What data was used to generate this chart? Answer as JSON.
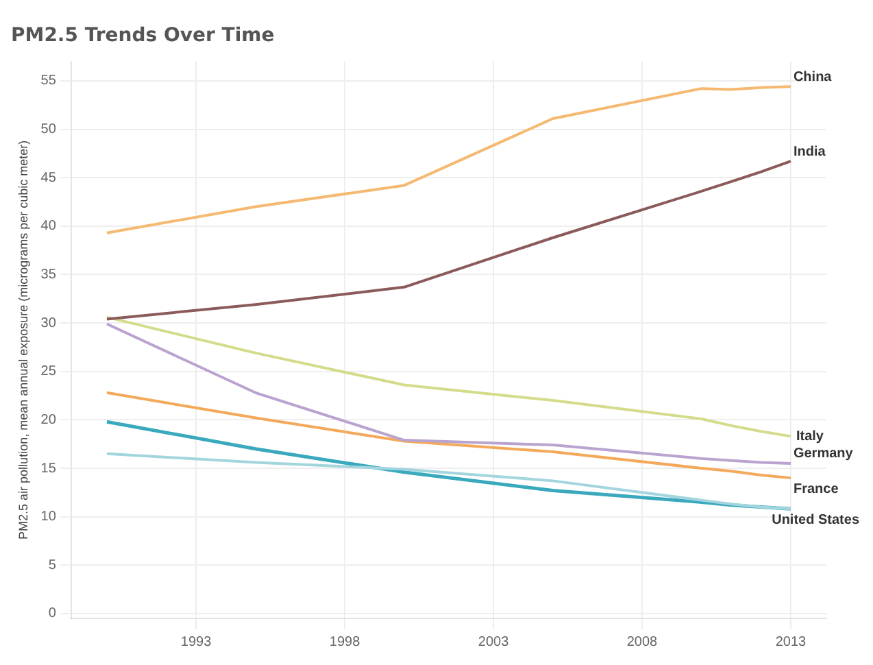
{
  "chart_data": {
    "type": "line",
    "title": "PM2.5 Trends Over Time",
    "ylabel": "PM2.5 air pollution, mean annual exposure (micrograms per cubic meter)",
    "x": [
      1990,
      1995,
      2000,
      2005,
      2010,
      2011,
      2012,
      2013
    ],
    "series": [
      {
        "name": "China",
        "color": "#f5b971",
        "values": [
          39.3,
          42.0,
          44.2,
          51.1,
          54.2,
          54.1,
          54.3,
          54.4
        ]
      },
      {
        "name": "India",
        "color": "#8b5a5a",
        "values": [
          30.4,
          31.9,
          33.7,
          38.8,
          43.6,
          44.6,
          45.6,
          46.7
        ]
      },
      {
        "name": "Italy",
        "color": "#d4dc8c",
        "values": [
          30.6,
          26.9,
          23.6,
          22.0,
          20.1,
          19.4,
          18.8,
          18.3
        ]
      },
      {
        "name": "Germany",
        "color": "#b9a3cf",
        "values": [
          29.9,
          22.8,
          17.9,
          17.4,
          16.0,
          15.8,
          15.6,
          15.5
        ]
      },
      {
        "name": "France",
        "color": "#f4a95a",
        "values": [
          22.8,
          20.2,
          17.8,
          16.7,
          15.0,
          14.7,
          14.3,
          14.0
        ]
      },
      {
        "color": "#a3d5de",
        "values": [
          16.5,
          15.6,
          14.9,
          13.7,
          11.7,
          11.3,
          11.0,
          10.8
        ]
      },
      {
        "name": "United States",
        "color": "#3aa9bd",
        "values": [
          19.8,
          17.0,
          14.6,
          12.7,
          11.5,
          11.2,
          11.0,
          10.8
        ]
      }
    ],
    "xlim": [
      1988.8,
      2014.2
    ],
    "xticks": [
      1993,
      1998,
      2003,
      2008,
      2013
    ],
    "ylim": [
      -0.5,
      57
    ],
    "yticks": [
      0,
      5,
      10,
      15,
      20,
      25,
      30,
      35,
      40,
      45,
      50,
      55
    ],
    "grid": true,
    "legend": false,
    "marker": "none",
    "line_style": "solid"
  }
}
